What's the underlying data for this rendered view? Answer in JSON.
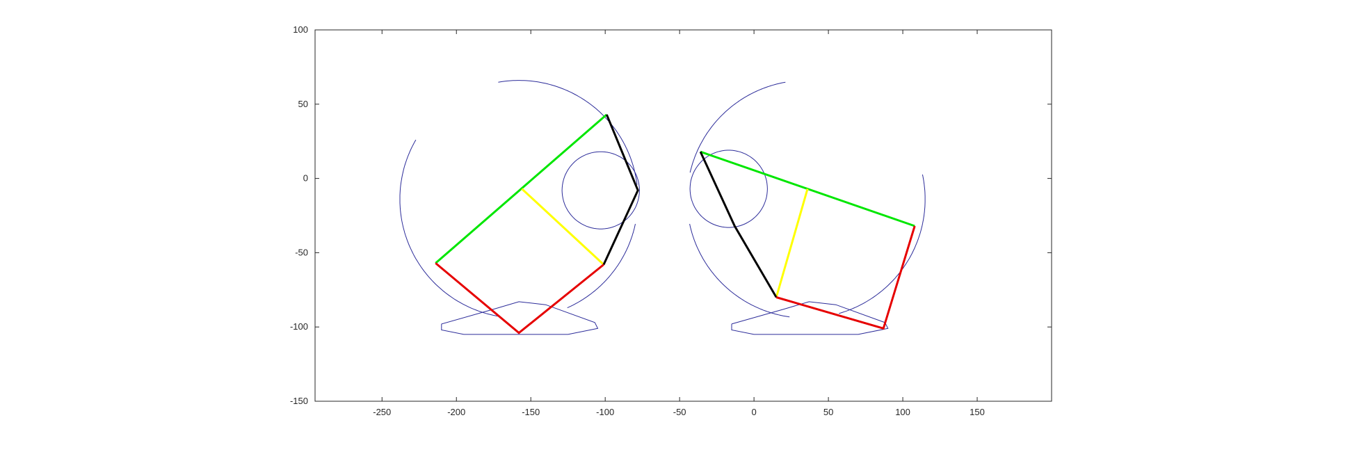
{
  "chart_data": {
    "type": "line",
    "title": "",
    "xlabel": "",
    "ylabel": "",
    "xlim": [
      -295,
      200
    ],
    "ylim": [
      -150,
      100
    ],
    "x_ticks": [
      -250,
      -200,
      -150,
      -100,
      -50,
      0,
      50,
      100,
      150
    ],
    "y_ticks": [
      100,
      50,
      0,
      -50,
      -100,
      -150
    ],
    "grid": false,
    "legend": "none",
    "colors": {
      "outline": "#2b2b99",
      "green": "#00e600",
      "yellow": "#ffff00",
      "red": "#e60000",
      "black": "#000000",
      "axes": "#262626"
    },
    "curves": [
      {
        "type": "arc",
        "center": [
          -158,
          -14
        ],
        "radius": 80,
        "from_deg": 100,
        "to_deg": 7,
        "color": "outline"
      },
      {
        "type": "arc",
        "center": [
          -158,
          -14
        ],
        "radius": 80,
        "from_deg": 150,
        "to_deg": 260,
        "color": "outline"
      },
      {
        "type": "arc",
        "center": [
          -158,
          -14
        ],
        "radius": 80,
        "from_deg": 294,
        "to_deg": 348,
        "color": "outline"
      },
      {
        "type": "circle",
        "center": [
          -103,
          -8
        ],
        "radius": 26,
        "color": "outline"
      },
      {
        "type": "polyline",
        "points": [
          [
            -210,
            -98
          ],
          [
            -175,
            -88
          ],
          [
            -158,
            -83
          ],
          [
            -140,
            -85
          ],
          [
            -107,
            -97
          ],
          [
            -105,
            -101
          ],
          [
            -125,
            -105
          ],
          [
            -158,
            -105
          ],
          [
            -195,
            -105
          ],
          [
            -210,
            -102
          ],
          [
            -210,
            -98
          ]
        ],
        "color": "outline"
      },
      {
        "type": "arc",
        "center": [
          35,
          -14
        ],
        "radius": 80,
        "from_deg": 100,
        "to_deg": 167,
        "color": "outline"
      },
      {
        "type": "arc",
        "center": [
          35,
          -14
        ],
        "radius": 80,
        "from_deg": 192,
        "to_deg": 262,
        "color": "outline"
      },
      {
        "type": "arc",
        "center": [
          35,
          -14
        ],
        "radius": 80,
        "from_deg": 286,
        "to_deg": 372,
        "color": "outline"
      },
      {
        "type": "circle",
        "center": [
          -17,
          -7
        ],
        "radius": 26,
        "color": "outline"
      },
      {
        "type": "polyline",
        "points": [
          [
            -15,
            -98
          ],
          [
            20,
            -88
          ],
          [
            37,
            -83
          ],
          [
            55,
            -85
          ],
          [
            88,
            -97
          ],
          [
            90,
            -101
          ],
          [
            70,
            -105
          ],
          [
            37,
            -105
          ],
          [
            0,
            -105
          ],
          [
            -15,
            -102
          ],
          [
            -15,
            -98
          ]
        ],
        "color": "outline"
      }
    ],
    "segments": [
      {
        "name": "green-bar-left",
        "color": "green",
        "points": [
          [
            -214,
            -57
          ],
          [
            -99,
            43
          ]
        ]
      },
      {
        "name": "yellow-bar-left",
        "color": "yellow",
        "points": [
          [
            -156,
            -7
          ],
          [
            -101,
            -58
          ]
        ]
      },
      {
        "name": "black-link-left",
        "color": "black",
        "points": [
          [
            -99,
            43
          ],
          [
            -78,
            -8
          ],
          [
            -101,
            -58
          ]
        ]
      },
      {
        "name": "red-link-left",
        "color": "red",
        "points": [
          [
            -214,
            -57
          ],
          [
            -158,
            -104
          ],
          [
            -101,
            -58
          ]
        ]
      },
      {
        "name": "green-bar-right",
        "color": "green",
        "points": [
          [
            -36,
            18
          ],
          [
            108,
            -32
          ]
        ]
      },
      {
        "name": "yellow-bar-right",
        "color": "yellow",
        "points": [
          [
            36,
            -7
          ],
          [
            15,
            -80
          ]
        ]
      },
      {
        "name": "black-link-right",
        "color": "black",
        "points": [
          [
            -36,
            18
          ],
          [
            -13,
            -32
          ],
          [
            15,
            -80
          ]
        ]
      },
      {
        "name": "red-link-right",
        "color": "red",
        "points": [
          [
            15,
            -80
          ],
          [
            87,
            -101
          ],
          [
            108,
            -32
          ]
        ]
      }
    ]
  }
}
